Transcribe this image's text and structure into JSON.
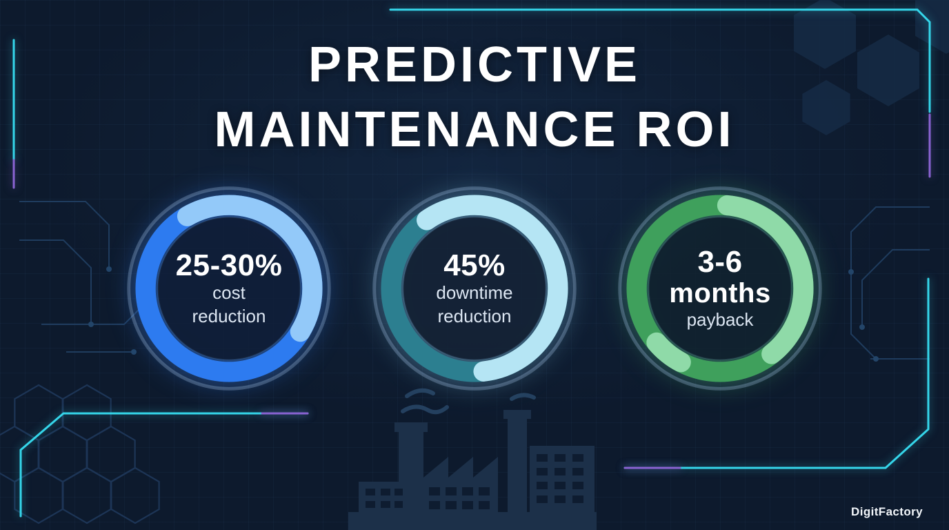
{
  "title": {
    "line1": "PREDICTIVE",
    "line2": "MAINTENANCE ROI"
  },
  "brand": "DigitFactory",
  "colors": {
    "background": "#0d1a2d",
    "accent_cyan": "#35d6ea",
    "accent_purple": "#8a63d2",
    "factory_silhouette": "#1c3049",
    "title_text": "#ffffff",
    "label_text": "#dce6f2"
  },
  "stats": [
    {
      "value_lines": [
        "25-30%"
      ],
      "label_lines": [
        "cost",
        "reduction"
      ],
      "ring": {
        "base_color": "#2d7bf0",
        "highlight_color": "#93c9f9",
        "highlight_percent": 42,
        "highlight_start_deg": -120,
        "glow_color": "rgba(45,123,240,0.45)"
      }
    },
    {
      "value_lines": [
        "45%"
      ],
      "label_lines": [
        "downtime",
        "reduction"
      ],
      "ring": {
        "base_color": "#2c7f90",
        "highlight_color": "#b5e5f4",
        "highlight_percent": 58,
        "highlight_start_deg": -125,
        "glow_color": "rgba(120,200,230,0.38)"
      }
    },
    {
      "value_lines": [
        "3-6",
        "months"
      ],
      "label_lines": [
        "payback"
      ],
      "ring": {
        "base_color": "#3fa05c",
        "highlight_color": "#8fdaa8",
        "highlight_percent": 38,
        "highlight_start_deg": -85,
        "highlight2_percent": 6,
        "highlight2_start_deg": 118,
        "glow_color": "rgba(70,180,110,0.42)"
      }
    }
  ],
  "chart_data": {
    "type": "pie",
    "title": "PREDICTIVE MAINTENANCE ROI",
    "legend_position": "none",
    "items": [
      {
        "value": "25-30%",
        "label": "cost reduction",
        "ring_color": "#2d7bf0"
      },
      {
        "value": "45%",
        "label": "downtime reduction",
        "ring_color": "#2c7f90"
      },
      {
        "value": "3-6 months",
        "label": "payback",
        "ring_color": "#3fa05c"
      }
    ]
  }
}
